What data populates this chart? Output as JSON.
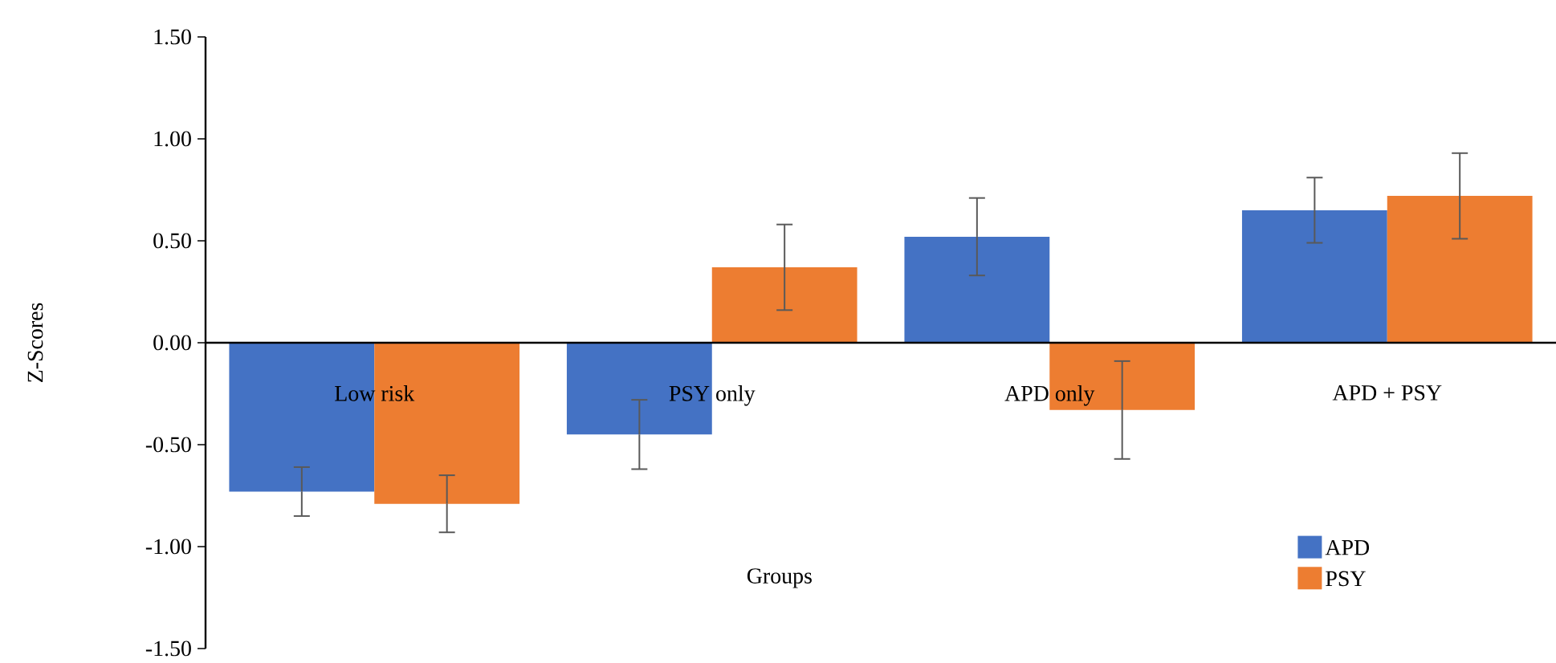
{
  "chart_data": {
    "type": "bar",
    "xlabel": "Groups",
    "ylabel": "Z-Scores",
    "categories": [
      "Low risk",
      "PSY only",
      "APD only",
      "APD + PSY"
    ],
    "series": [
      {
        "name": "APD",
        "color": "#4472c4",
        "values": [
          -0.73,
          -0.45,
          0.52,
          0.65
        ],
        "errors": [
          0.12,
          0.17,
          0.19,
          0.16
        ]
      },
      {
        "name": "PSY",
        "color": "#ed7d31",
        "values": [
          -0.79,
          0.37,
          -0.33,
          0.72
        ],
        "errors": [
          0.14,
          0.21,
          0.24,
          0.21
        ]
      }
    ],
    "ylim": [
      -1.5,
      1.5
    ],
    "yticks": [
      {
        "value": -1.5,
        "label": "-1.50"
      },
      {
        "value": -1.0,
        "label": "-1.00"
      },
      {
        "value": -0.5,
        "label": "-0.50"
      },
      {
        "value": 0,
        "label": "0.00"
      },
      {
        "value": 0.5,
        "label": "0.50"
      },
      {
        "value": 1.0,
        "label": "1.00"
      },
      {
        "value": 1.5,
        "label": "1.50"
      }
    ],
    "grid": false,
    "legend": "bottom right"
  }
}
